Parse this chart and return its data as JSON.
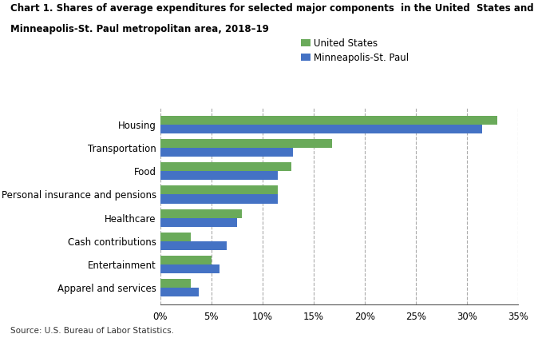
{
  "title_line1": "Chart 1. Shares of average expenditures for selected major components  in the United  States and",
  "title_line2": "Minneapolis-St. Paul metropolitan area, 2018–19",
  "categories": [
    "Apparel and services",
    "Entertainment",
    "Cash contributions",
    "Healthcare",
    "Personal insurance and pensions",
    "Food",
    "Transportation",
    "Housing"
  ],
  "us_values": [
    3.0,
    5.0,
    3.0,
    8.0,
    11.5,
    12.8,
    16.8,
    33.0
  ],
  "mp_values": [
    3.8,
    5.8,
    6.5,
    7.5,
    11.5,
    11.5,
    13.0,
    31.5
  ],
  "us_color": "#6aaa5a",
  "mp_color": "#4472c4",
  "legend_labels": [
    "United States",
    "Minneapolis-St. Paul"
  ],
  "xlim": [
    0,
    35
  ],
  "xtick_values": [
    0,
    5,
    10,
    15,
    20,
    25,
    30,
    35
  ],
  "source": "Source: U.S. Bureau of Labor Statistics.",
  "bar_height": 0.38,
  "background_color": "#ffffff"
}
